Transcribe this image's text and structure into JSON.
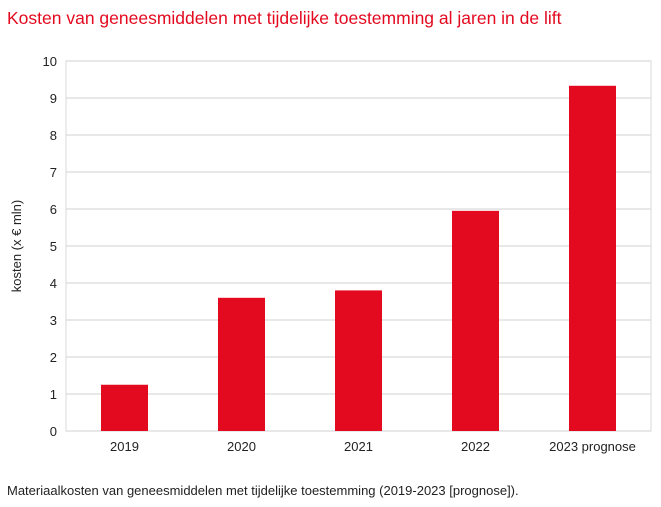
{
  "title": "Kosten van geneesmiddelen met tijdelijke toestemming al jaren in de lift",
  "caption": "Materiaalkosten van geneesmiddelen met tijdelijke toestemming (2019-2023 [prognose]).",
  "colors": {
    "bar": "#e30a20",
    "grid": "#d9d9d9",
    "title": "#e30a20"
  },
  "chart_data": {
    "type": "bar",
    "title": "Kosten van geneesmiddelen met tijdelijke toestemming al jaren in de lift",
    "categories": [
      "2019",
      "2020",
      "2021",
      "2022",
      "2023 prognose"
    ],
    "values": [
      1.25,
      3.6,
      3.8,
      5.95,
      9.33
    ],
    "xlabel": "",
    "ylabel": "kosten (x € mln)",
    "ylim": [
      0,
      10
    ],
    "yticks": [
      "0",
      "1",
      "2",
      "3",
      "4",
      "5",
      "6",
      "7",
      "8",
      "9",
      "10"
    ],
    "grid": true,
    "legend": "none"
  }
}
